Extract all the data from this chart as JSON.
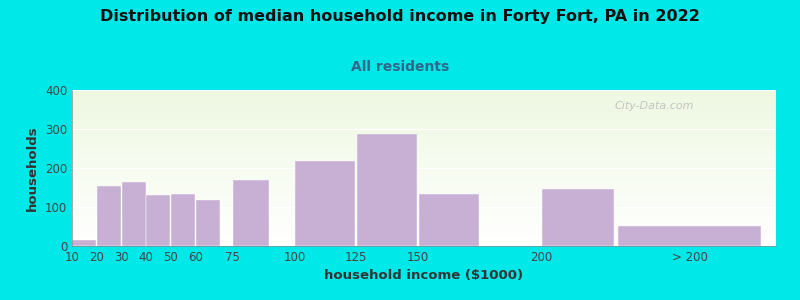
{
  "title": "Distribution of median household income in Forty Fort, PA in 2022",
  "subtitle": "All residents",
  "xlabel": "household income ($1000)",
  "ylabel": "households",
  "title_fontsize": 11.5,
  "subtitle_fontsize": 10,
  "label_fontsize": 9.5,
  "tick_fontsize": 8.5,
  "bar_color": "#c8b0d5",
  "background_color": "#00e8e8",
  "watermark": "City-Data.com",
  "categories": [
    "10",
    "20",
    "30",
    "40",
    "50",
    "60",
    "75",
    "100",
    "125",
    "150",
    "200",
    "> 200"
  ],
  "values": [
    15,
    153,
    163,
    130,
    133,
    118,
    170,
    218,
    288,
    133,
    145,
    52
  ],
  "ylim": [
    0,
    400
  ],
  "yticks": [
    0,
    100,
    200,
    300,
    400
  ],
  "bar_lefts": [
    10,
    20,
    30,
    40,
    50,
    60,
    75,
    100,
    125,
    150,
    200,
    230
  ],
  "bar_widths": [
    10,
    10,
    10,
    10,
    10,
    10,
    15,
    25,
    25,
    25,
    30,
    60
  ],
  "xtick_positions": [
    10,
    20,
    30,
    40,
    50,
    60,
    75,
    100,
    125,
    150,
    200,
    260
  ],
  "xtick_labels": [
    "10",
    "20",
    "30",
    "40",
    "50",
    "60",
    "75",
    "100",
    "125",
    "150",
    "200",
    "> 200"
  ],
  "xlim": [
    10,
    295
  ]
}
